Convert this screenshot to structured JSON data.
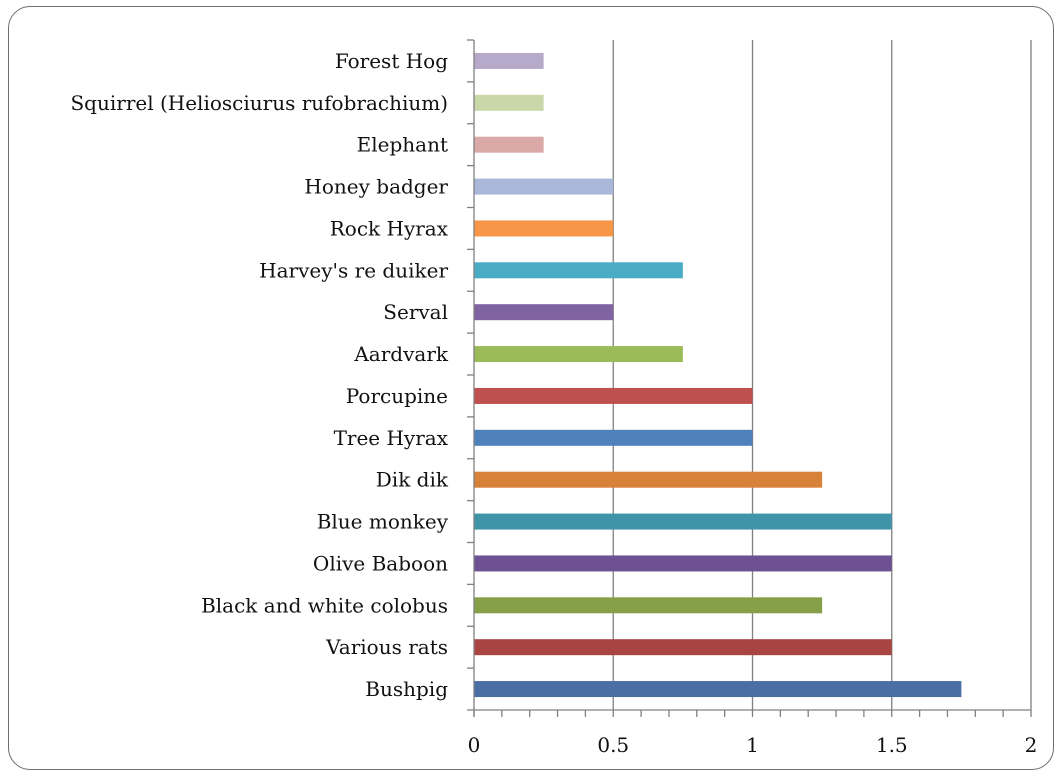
{
  "chart_data": {
    "type": "bar",
    "orientation": "horizontal",
    "title": "",
    "xlabel": "",
    "ylabel": "",
    "xlim": [
      0,
      2
    ],
    "x_ticks": [
      "0",
      "0.5",
      "1",
      "1.5",
      "2"
    ],
    "grid": true,
    "legend": "none",
    "categories": [
      "Bushpig",
      "Various rats",
      "Black and white colobus",
      "Olive Baboon",
      "Blue monkey",
      "Dik dik",
      "Tree Hyrax",
      "Porcupine",
      "Aardvark",
      "Serval",
      "Harvey's re duiker",
      "Rock Hyrax",
      "Honey badger",
      "Elephant",
      "Squirrel (Heliosciurus rufobrachium)",
      "Forest Hog"
    ],
    "values": [
      1.75,
      1.5,
      1.25,
      1.5,
      1.5,
      1.25,
      1,
      1,
      0.75,
      0.5,
      0.75,
      0.5,
      0.5,
      0.25,
      0.25,
      0.25
    ],
    "colors": [
      "#4a6fa5",
      "#a84442",
      "#86a04a",
      "#6d5192",
      "#3f94a8",
      "#d7813b",
      "#4f81bd",
      "#c0504d",
      "#9bbb59",
      "#8064a2",
      "#4bacc6",
      "#f79646",
      "#a9b8d8",
      "#dba9a8",
      "#c9d8a9",
      "#b7a9ca"
    ]
  }
}
